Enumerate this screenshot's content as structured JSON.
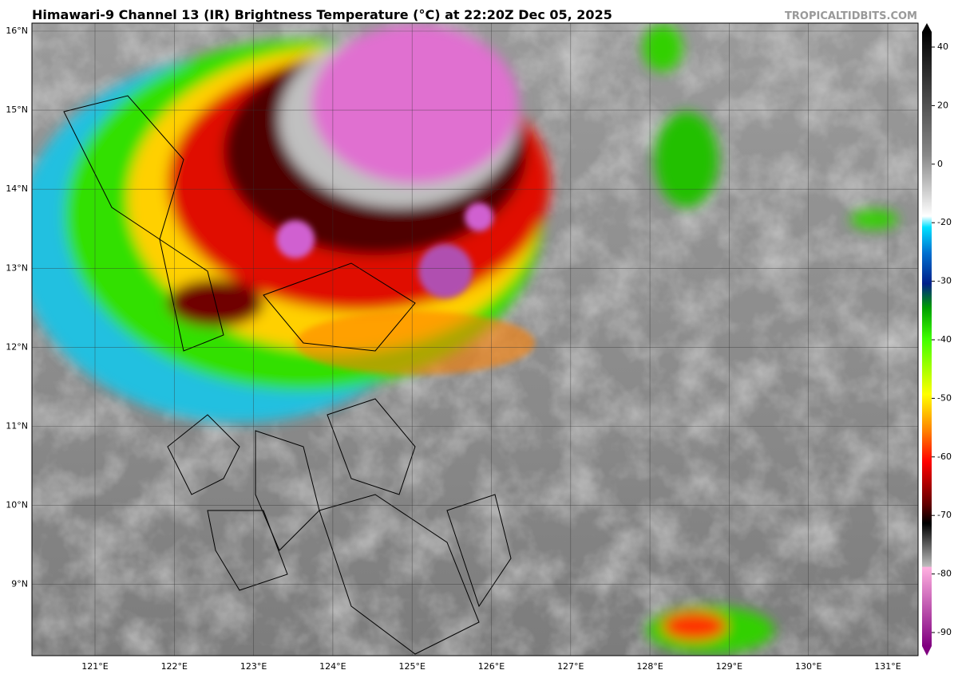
{
  "header": {
    "title": "Himawari-9 Channel 13 (IR) Brightness Temperature (°C) at 22:20Z Dec 05, 2025",
    "credit": "TROPICALTIDBITS.COM"
  },
  "map": {
    "lat_labels": [
      "16°N",
      "15°N",
      "14°N",
      "13°N",
      "12°N",
      "11°N",
      "10°N",
      "9°N"
    ],
    "lon_labels": [
      "121°E",
      "122°E",
      "123°E",
      "124°E",
      "125°E",
      "126°E",
      "127°E",
      "128°E",
      "129°E",
      "130°E",
      "131°E"
    ]
  },
  "colorbar": {
    "ticks": [
      40,
      20,
      0,
      -20,
      -30,
      -40,
      -50,
      -60,
      -70,
      -80,
      -90
    ]
  }
}
